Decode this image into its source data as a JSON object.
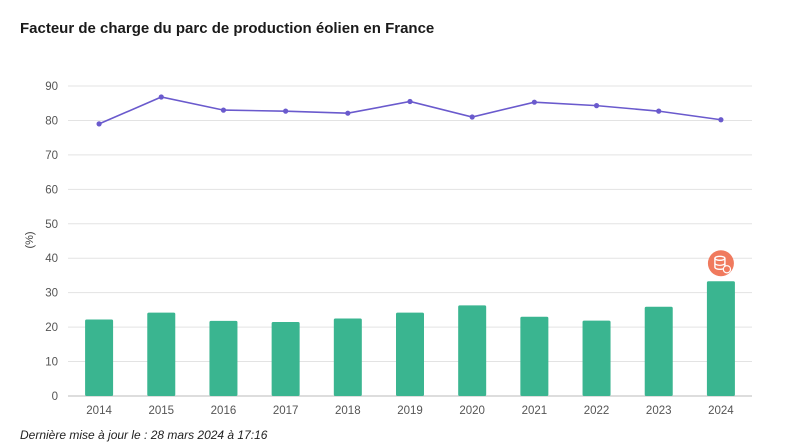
{
  "title": "Facteur de charge du parc de production éolien en France",
  "footer": "Dernière mise à jour le : 28 mars 2024 à 17:16",
  "chart_data": {
    "type": "bar",
    "categories": [
      "2014",
      "2015",
      "2016",
      "2017",
      "2018",
      "2019",
      "2020",
      "2021",
      "2022",
      "2023",
      "2024"
    ],
    "series": [
      {
        "type": "bar",
        "color": "#3ab590",
        "values": [
          22.2,
          24.2,
          21.8,
          21.5,
          22.5,
          24.2,
          26.3,
          23.0,
          21.9,
          25.9,
          33.3
        ]
      },
      {
        "type": "line",
        "color": "#6a5acd",
        "values": [
          79.0,
          86.8,
          83.0,
          82.7,
          82.1,
          85.5,
          81.0,
          85.3,
          84.3,
          82.7,
          80.2
        ]
      }
    ],
    "ylabel": "(%)",
    "ylim": [
      0,
      90
    ],
    "yticks": [
      0,
      10,
      20,
      30,
      40,
      50,
      60,
      70,
      80,
      90
    ],
    "grid": true,
    "highlight_icon": "database-badge-icon",
    "highlight_color": "#f07a5e"
  }
}
